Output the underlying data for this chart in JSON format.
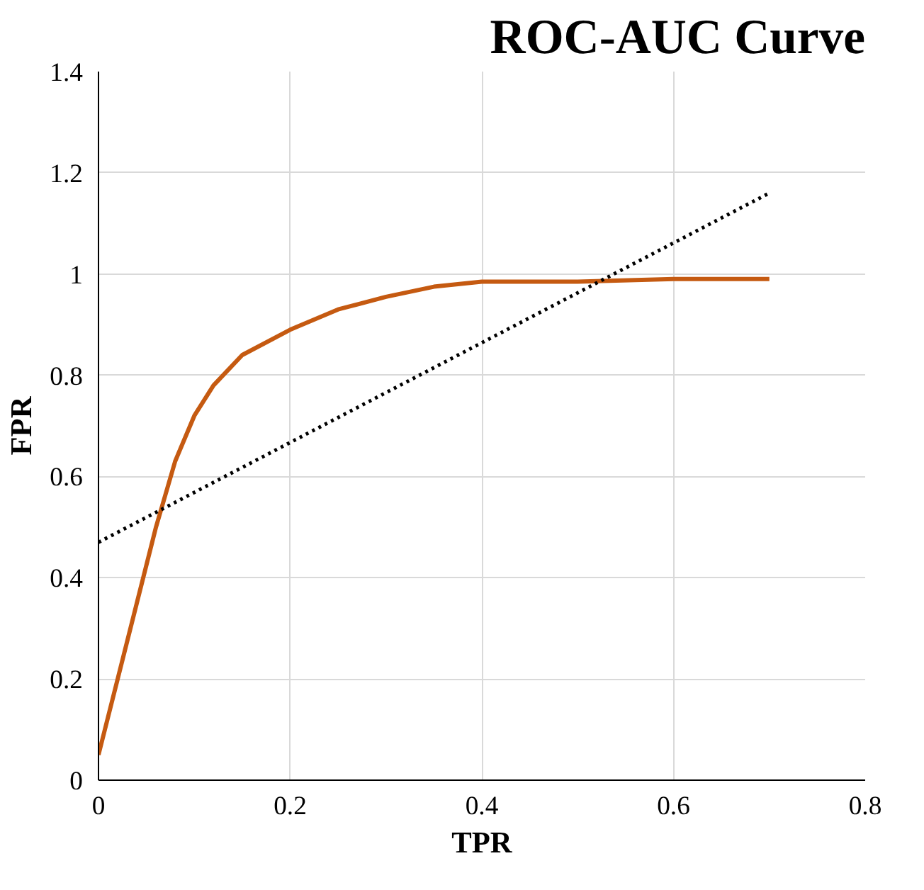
{
  "chart_data": {
    "type": "line",
    "title": "ROC-AUC Curve",
    "xlabel": "TPR",
    "ylabel": "FPR",
    "x": [
      0,
      0.02,
      0.04,
      0.06,
      0.08,
      0.1,
      0.12,
      0.15,
      0.2,
      0.25,
      0.3,
      0.35,
      0.4,
      0.5,
      0.6,
      0.7
    ],
    "series": [
      {
        "color": "#c55a11",
        "values": [
          0.05,
          0.2,
          0.35,
          0.5,
          0.63,
          0.72,
          0.78,
          0.84,
          0.89,
          0.93,
          0.955,
          0.975,
          0.985,
          0.985,
          0.99,
          0.99
        ]
      },
      {
        "type": "line",
        "color": "#000000",
        "line_style": "dotted",
        "x": [
          0,
          0.7
        ],
        "values": [
          0.47,
          1.16
        ]
      }
    ],
    "xlim": [
      0,
      0.8
    ],
    "ylim": [
      0,
      1.4
    ],
    "xticks": [
      0,
      0.2,
      0.4,
      0.6,
      0.8
    ],
    "yticks": [
      0,
      0.2,
      0.4,
      0.6,
      0.8,
      1,
      1.2,
      1.4
    ],
    "grid": true,
    "marker": "none",
    "line_style": "solid"
  }
}
